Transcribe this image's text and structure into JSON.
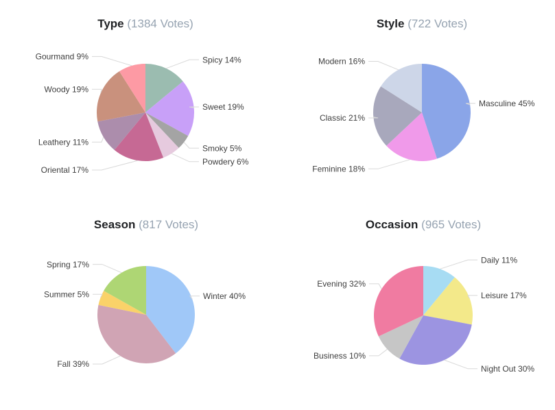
{
  "page": {
    "background": "#ffffff",
    "label_text_color": "#3e3e3e",
    "title_text_color": "#1f2124",
    "votes_text_color": "#96a3b1",
    "connector_color": "#d8d8d8"
  },
  "chart_data": [
    {
      "type": "pie",
      "title": "Type",
      "votes": 1384,
      "votes_label": "(1384 Votes)",
      "unit": "%",
      "start_angle": 0,
      "direction": "clockwise",
      "legend_position": "none",
      "label_style": "outside-with-connectors",
      "labels": [
        "Spicy",
        "Sweet",
        "Smoky",
        "Powdery",
        "Oriental",
        "Leathery",
        "Woody",
        "Gourmand"
      ],
      "values": [
        14,
        19,
        5,
        6,
        17,
        11,
        19,
        9
      ],
      "colors": [
        "#9bbcb0",
        "#c8a0f8",
        "#a4a4a4",
        "#e6cade",
        "#c66994",
        "#ac8dac",
        "#c9917d",
        "#fd9aa4"
      ]
    },
    {
      "type": "pie",
      "title": "Style",
      "votes": 722,
      "votes_label": "(722 Votes)",
      "unit": "%",
      "start_angle": 0,
      "direction": "clockwise",
      "legend_position": "none",
      "label_style": "outside-with-connectors",
      "labels": [
        "Masculine",
        "Feminine",
        "Classic",
        "Modern"
      ],
      "values": [
        45,
        18,
        21,
        16
      ],
      "colors": [
        "#8aa5e8",
        "#f09aea",
        "#a8a8bc",
        "#cdd6e8"
      ]
    },
    {
      "type": "pie",
      "title": "Season",
      "votes": 817,
      "votes_label": "(817 Votes)",
      "unit": "%",
      "start_angle": 0,
      "direction": "clockwise",
      "legend_position": "none",
      "label_style": "outside-with-connectors",
      "labels": [
        "Winter",
        "Fall",
        "Summer",
        "Spring"
      ],
      "values": [
        40,
        39,
        5,
        17
      ],
      "colors": [
        "#a0c8f8",
        "#d0a4b4",
        "#fad269",
        "#aed674"
      ]
    },
    {
      "type": "pie",
      "title": "Occasion",
      "votes": 965,
      "votes_label": "(965 Votes)",
      "unit": "%",
      "start_angle": 0,
      "direction": "clockwise",
      "legend_position": "none",
      "label_style": "outside-with-connectors",
      "labels": [
        "Daily",
        "Leisure",
        "Night Out",
        "Business",
        "Evening"
      ],
      "values": [
        11,
        17,
        30,
        10,
        32
      ],
      "colors": [
        "#a7dcf3",
        "#f3e98a",
        "#9c94e1",
        "#c6c6c6",
        "#f07ba1"
      ]
    }
  ]
}
